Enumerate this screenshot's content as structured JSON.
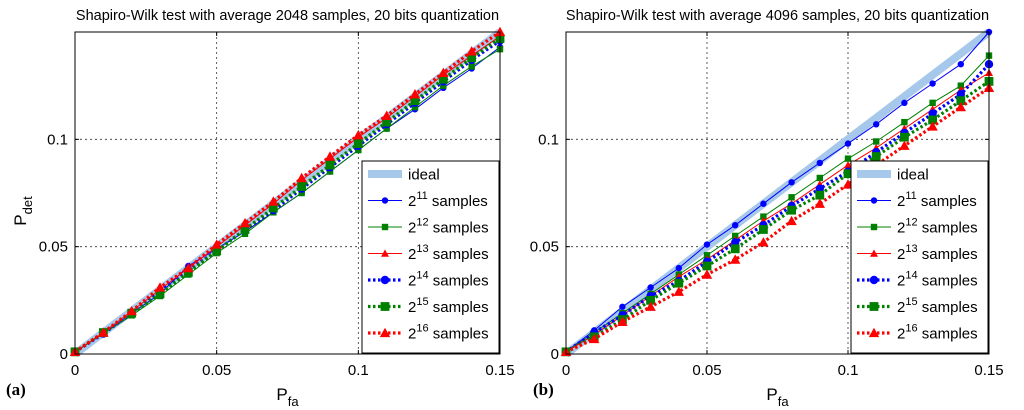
{
  "chart_data": [
    {
      "type": "line",
      "panel_label": "(a)",
      "title": "Shapiro-Wilk test with average 2048 samples, 20 bits quantization",
      "xlabel_base": "P",
      "xlabel_sub": "fa",
      "ylabel_base": "P",
      "ylabel_sub": "det",
      "xlim": [
        0,
        0.15
      ],
      "ylim": [
        0,
        0.15
      ],
      "xticks": [
        0,
        0.05,
        0.1,
        0.15
      ],
      "xtick_labels": [
        "0",
        "0.05",
        "0.1",
        "0.15"
      ],
      "yticks": [
        0,
        0.05,
        0.1
      ],
      "ytick_labels": [
        "0",
        "0.05",
        "0.1"
      ],
      "grid": true,
      "legend_position": "bottom-right",
      "x": [
        0,
        0.01,
        0.02,
        0.03,
        0.04,
        0.05,
        0.06,
        0.07,
        0.08,
        0.09,
        0.1,
        0.11,
        0.12,
        0.13,
        0.14,
        0.15
      ],
      "series": [
        {
          "name": "ideal",
          "base": "",
          "exp": "",
          "suffix": "",
          "color": "#a6c8ea",
          "style": "band",
          "values": [
            0,
            0.01,
            0.02,
            0.03,
            0.04,
            0.05,
            0.06,
            0.07,
            0.08,
            0.09,
            0.1,
            0.11,
            0.12,
            0.13,
            0.14,
            0.15
          ]
        },
        {
          "name": "2^11 samples",
          "base": "2",
          "exp": "11",
          "suffix": "samples",
          "color": "#0000ff",
          "style": "thin",
          "marker": "circle",
          "values": [
            0.001,
            0.0095,
            0.019,
            0.028,
            0.041,
            0.049,
            0.057,
            0.066,
            0.075,
            0.085,
            0.095,
            0.105,
            0.114,
            0.124,
            0.133,
            0.143
          ]
        },
        {
          "name": "2^12 samples",
          "base": "2",
          "exp": "12",
          "suffix": "samples",
          "color": "#008000",
          "style": "thin",
          "marker": "square",
          "values": [
            0.001,
            0.0095,
            0.018,
            0.027,
            0.037,
            0.047,
            0.056,
            0.066,
            0.075,
            0.085,
            0.095,
            0.105,
            0.115,
            0.125,
            0.134,
            0.142
          ]
        },
        {
          "name": "2^13 samples",
          "base": "2",
          "exp": "13",
          "suffix": "samples",
          "color": "#ff0000",
          "style": "thin",
          "marker": "triangle",
          "values": [
            0.001,
            0.01,
            0.02,
            0.03,
            0.04,
            0.05,
            0.06,
            0.07,
            0.081,
            0.091,
            0.101,
            0.11,
            0.12,
            0.13,
            0.139,
            0.148
          ]
        },
        {
          "name": "2^14 samples",
          "base": "2",
          "exp": "14",
          "suffix": "samples",
          "color": "#0000ff",
          "style": "dotted",
          "marker": "circle",
          "values": [
            0.001,
            0.0095,
            0.019,
            0.029,
            0.039,
            0.048,
            0.058,
            0.067,
            0.077,
            0.087,
            0.097,
            0.107,
            0.117,
            0.127,
            0.137,
            0.146
          ]
        },
        {
          "name": "2^15 samples",
          "base": "2",
          "exp": "15",
          "suffix": "samples",
          "color": "#008000",
          "style": "dotted",
          "marker": "square",
          "values": [
            0.001,
            0.01,
            0.019,
            0.028,
            0.038,
            0.048,
            0.058,
            0.068,
            0.078,
            0.088,
            0.098,
            0.108,
            0.118,
            0.128,
            0.138,
            0.147
          ]
        },
        {
          "name": "2^16 samples",
          "base": "2",
          "exp": "16",
          "suffix": "samples",
          "color": "#ff0000",
          "style": "dotted",
          "marker": "triangle",
          "values": [
            0.001,
            0.01,
            0.02,
            0.031,
            0.04,
            0.051,
            0.061,
            0.071,
            0.082,
            0.092,
            0.102,
            0.111,
            0.121,
            0.131,
            0.141,
            0.15
          ]
        }
      ]
    },
    {
      "type": "line",
      "panel_label": "(b)",
      "title": "Shapiro-Wilk test with average 4096 samples, 20 bits quantization",
      "xlabel_base": "P",
      "xlabel_sub": "fa",
      "ylabel_base": "",
      "ylabel_sub": "",
      "xlim": [
        0,
        0.15
      ],
      "ylim": [
        0,
        0.15
      ],
      "xticks": [
        0,
        0.05,
        0.1,
        0.15
      ],
      "xtick_labels": [
        "0",
        "0.05",
        "0.1",
        "0.15"
      ],
      "yticks": [
        0,
        0.05,
        0.1
      ],
      "ytick_labels": [
        "0",
        "0.05",
        "0.1"
      ],
      "grid": true,
      "legend_position": "bottom-right",
      "x": [
        0,
        0.01,
        0.02,
        0.03,
        0.04,
        0.05,
        0.06,
        0.07,
        0.08,
        0.09,
        0.1,
        0.11,
        0.12,
        0.13,
        0.14,
        0.15
      ],
      "series": [
        {
          "name": "ideal",
          "base": "",
          "exp": "",
          "suffix": "",
          "color": "#a6c8ea",
          "style": "band",
          "values": [
            0,
            0.01,
            0.02,
            0.03,
            0.04,
            0.05,
            0.06,
            0.07,
            0.08,
            0.09,
            0.1,
            0.11,
            0.12,
            0.13,
            0.14,
            0.15
          ]
        },
        {
          "name": "2^11 samples",
          "base": "2",
          "exp": "11",
          "suffix": "samples",
          "color": "#0000ff",
          "style": "thin",
          "marker": "circle",
          "values": [
            0.001,
            0.011,
            0.022,
            0.031,
            0.04,
            0.051,
            0.06,
            0.07,
            0.08,
            0.089,
            0.098,
            0.107,
            0.117,
            0.126,
            0.135,
            0.15
          ]
        },
        {
          "name": "2^12 samples",
          "base": "2",
          "exp": "12",
          "suffix": "samples",
          "color": "#008000",
          "style": "thin",
          "marker": "square",
          "values": [
            0.001,
            0.01,
            0.019,
            0.028,
            0.037,
            0.046,
            0.055,
            0.064,
            0.073,
            0.082,
            0.091,
            0.099,
            0.108,
            0.117,
            0.125,
            0.139
          ]
        },
        {
          "name": "2^13 samples",
          "base": "2",
          "exp": "13",
          "suffix": "samples",
          "color": "#ff0000",
          "style": "thin",
          "marker": "triangle",
          "values": [
            0.001,
            0.009,
            0.018,
            0.027,
            0.036,
            0.044,
            0.053,
            0.062,
            0.07,
            0.079,
            0.088,
            0.096,
            0.105,
            0.114,
            0.123,
            0.131
          ]
        },
        {
          "name": "2^14 samples",
          "base": "2",
          "exp": "14",
          "suffix": "samples",
          "color": "#0000ff",
          "style": "dotted",
          "marker": "circle",
          "values": [
            0.001,
            0.01,
            0.018,
            0.027,
            0.034,
            0.043,
            0.052,
            0.06,
            0.069,
            0.077,
            0.085,
            0.094,
            0.103,
            0.112,
            0.121,
            0.135
          ]
        },
        {
          "name": "2^15 samples",
          "base": "2",
          "exp": "15",
          "suffix": "samples",
          "color": "#008000",
          "style": "dotted",
          "marker": "square",
          "values": [
            0.001,
            0.008,
            0.016,
            0.025,
            0.033,
            0.041,
            0.049,
            0.058,
            0.067,
            0.074,
            0.084,
            0.092,
            0.101,
            0.109,
            0.118,
            0.127
          ]
        },
        {
          "name": "2^16 samples",
          "base": "2",
          "exp": "16",
          "suffix": "samples",
          "color": "#ff0000",
          "style": "dotted",
          "marker": "triangle",
          "values": [
            0.001,
            0.007,
            0.015,
            0.022,
            0.029,
            0.037,
            0.044,
            0.052,
            0.062,
            0.07,
            0.079,
            0.088,
            0.097,
            0.106,
            0.115,
            0.124
          ]
        }
      ]
    }
  ]
}
